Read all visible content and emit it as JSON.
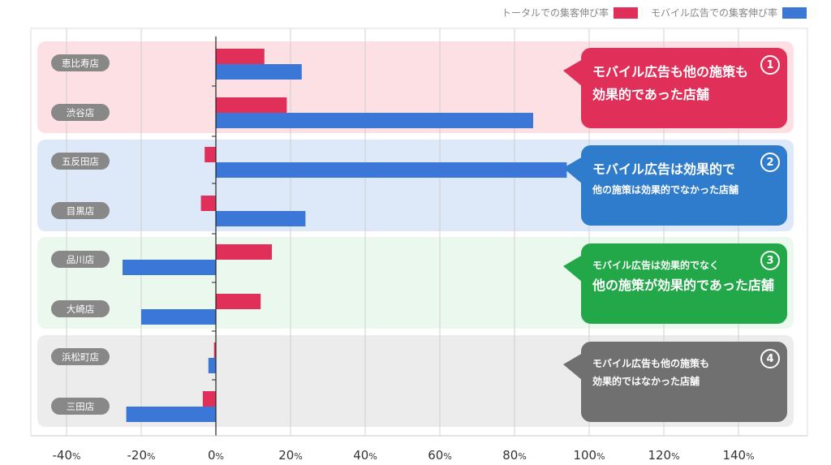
{
  "legend": {
    "total_label": "トータルでの集客伸び率",
    "total_color": "#e0305a",
    "mobile_label": "モバイル広告での集客伸び率",
    "mobile_color": "#3a77d6"
  },
  "chart_data": {
    "type": "bar",
    "orientation": "horizontal",
    "categories": [
      "恵比寿店",
      "渋谷店",
      "五反田店",
      "目黒店",
      "品川店",
      "大崎店",
      "浜松町店",
      "三田店"
    ],
    "series": [
      {
        "name": "トータルでの集客伸び率",
        "color": "#e0305a",
        "values": [
          13,
          19,
          -3,
          -4,
          15,
          12,
          -0.5,
          -3.5
        ]
      },
      {
        "name": "モバイル広告での集客伸び率",
        "color": "#3a77d6",
        "values": [
          23,
          85,
          94,
          24,
          -25,
          -20,
          -2,
          -24
        ]
      }
    ],
    "xlim": [
      -50,
      158
    ],
    "xticks": [
      -40,
      -20,
      0,
      20,
      40,
      60,
      80,
      100,
      120,
      140
    ],
    "tick_labels": [
      "-40",
      "-20",
      "0",
      "20",
      "40",
      "60",
      "80",
      "100",
      "120",
      "140"
    ],
    "tick_unit": "%",
    "title": "",
    "xlabel": "",
    "ylabel": "",
    "grid": true,
    "groups": [
      {
        "bg": "#fde0e4"
      },
      {
        "bg": "#dde8f8"
      },
      {
        "bg": "#ebf8ee"
      },
      {
        "bg": "#ececec"
      }
    ]
  },
  "callouts": [
    {
      "num": "1",
      "color": "#e0305a",
      "line1": "モバイル広告も他の施策も",
      "line2": "効果的であった店舗",
      "size1": "big",
      "size2": "big"
    },
    {
      "num": "2",
      "color": "#2f7ccc",
      "line1": "モバイル広告は効果的で",
      "line2": "他の施策は効果的でなかった店舗",
      "size1": "big",
      "size2": "small"
    },
    {
      "num": "3",
      "color": "#22a848",
      "line1": "モバイル広告は効果的でなく",
      "line2": "他の施策が効果的であった店舗",
      "size1": "small",
      "size2": "big"
    },
    {
      "num": "4",
      "color": "#707070",
      "line1": "モバイル広告も他の施策も",
      "line2": "効果的ではなかった店舗",
      "size1": "small",
      "size2": "small"
    }
  ]
}
